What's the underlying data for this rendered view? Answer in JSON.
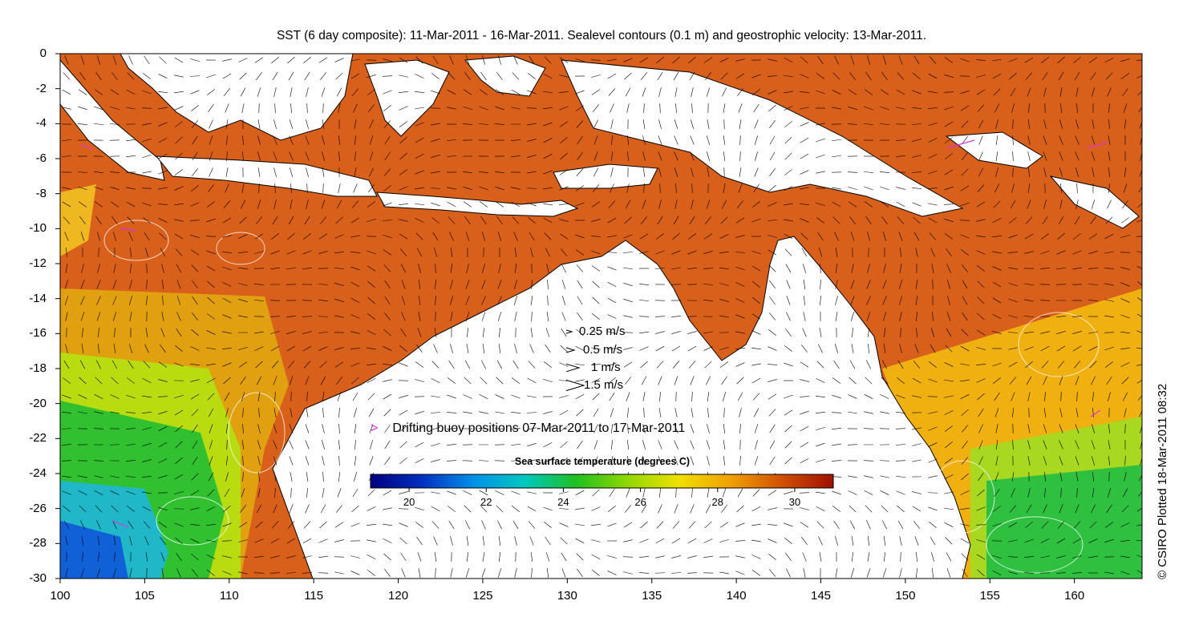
{
  "title": "SST (6 day composite): 11-Mar-2011 - 16-Mar-2011. Sealevel contours (0.1 m) and geostrophic velocity: 13-Mar-2011.",
  "credit": "© CSIRO Plotted 18-Mar-2011 08:32",
  "y_axis": {
    "ticks": [
      "0",
      "-2",
      "-4",
      "-6",
      "-8",
      "-10",
      "-12",
      "-14",
      "-16",
      "-18",
      "-20",
      "-22",
      "-24",
      "-26",
      "-28",
      "-30"
    ],
    "range": [
      -30,
      0
    ],
    "unit": "degrees latitude"
  },
  "x_axis": {
    "ticks": [
      "100",
      "105",
      "110",
      "115",
      "120",
      "125",
      "130",
      "135",
      "140",
      "145",
      "150",
      "155",
      "160"
    ],
    "range": [
      100,
      164
    ],
    "unit": "degrees longitude"
  },
  "velocity_legend": [
    {
      "label": "0.25 m/s",
      "speed": 0.25
    },
    {
      "label": "0.5 m/s",
      "speed": 0.5
    },
    {
      "label": "1 m/s",
      "speed": 1
    },
    {
      "label": "1.5 m/s",
      "speed": 1.5
    }
  ],
  "buoy_legend": {
    "label": "Drifting buoy positions 07-Mar-2011 to 17-Mar-2011",
    "color": "#e030e0"
  },
  "colorbar": {
    "title": "Sea surface temperature (degrees C)",
    "range": [
      19,
      31
    ],
    "ticks": [
      "20",
      "22",
      "24",
      "26",
      "28",
      "30"
    ],
    "colors": [
      "#00007f",
      "#0030c0",
      "#0090e8",
      "#00c8c0",
      "#20c020",
      "#90d800",
      "#f0e000",
      "#f0a000",
      "#d05000",
      "#a01000"
    ]
  },
  "land_color": "#ffffff",
  "coastline_color": "#000000",
  "contour_color": "#ffffff",
  "arrow_color": "#000000"
}
